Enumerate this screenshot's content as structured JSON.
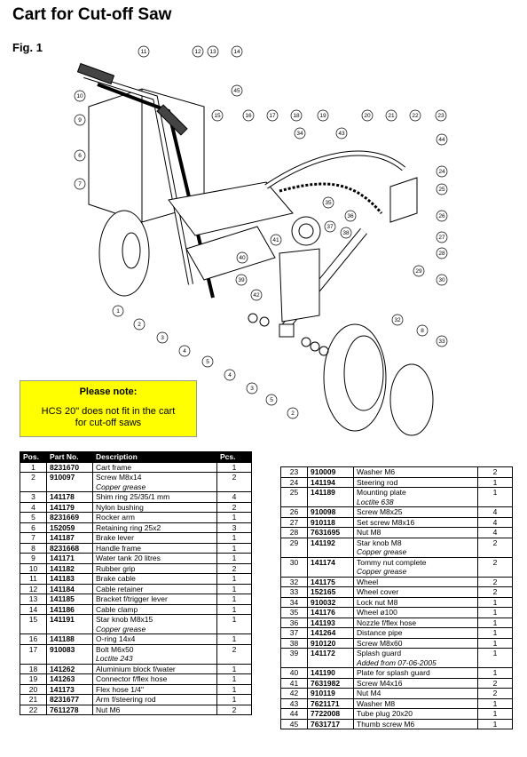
{
  "header": {
    "title": "Cart for Cut-off Saw",
    "figure": "Fig. 1"
  },
  "figure": {
    "callouts": [
      "11",
      "12",
      "13",
      "14",
      "10",
      "45",
      "9",
      "6",
      "7",
      "15",
      "16",
      "17",
      "18",
      "19",
      "20",
      "21",
      "22",
      "23",
      "34",
      "43",
      "44",
      "24",
      "25",
      "35",
      "26",
      "36",
      "37",
      "38",
      "27",
      "41",
      "40",
      "28",
      "29",
      "30",
      "39",
      "42",
      "1",
      "2",
      "3",
      "4",
      "5",
      "4",
      "3",
      "5",
      "2",
      "32",
      "8",
      "33"
    ]
  },
  "note": {
    "title": "Please note:",
    "body": "HCS 20\" does not fit in the cart for cut-off saws"
  },
  "table": {
    "headers": [
      "Pos.",
      "Part No.",
      "Description",
      "Pcs."
    ],
    "left_rows": [
      {
        "pos": "1",
        "part_no": "8231670",
        "description": "Cart frame",
        "pcs": "1"
      },
      {
        "pos": "2",
        "part_no": "910097",
        "description": "Screw M8x14",
        "note": "Copper grease",
        "pcs": "2"
      },
      {
        "pos": "3",
        "part_no": "141178",
        "description": "Shim ring 25/35/1 mm",
        "pcs": "4"
      },
      {
        "pos": "4",
        "part_no": "141179",
        "description": "Nylon bushing",
        "pcs": "2"
      },
      {
        "pos": "5",
        "part_no": "8231669",
        "description": "Rocker arm",
        "pcs": "1"
      },
      {
        "pos": "6",
        "part_no": "152059",
        "description": "Retaining ring 25x2",
        "pcs": "3"
      },
      {
        "pos": "7",
        "part_no": "141187",
        "description": "Brake lever",
        "pcs": "1"
      },
      {
        "pos": "8",
        "part_no": "8231668",
        "description": "Handle frame",
        "pcs": "1"
      },
      {
        "pos": "9",
        "part_no": "141171",
        "description": "Water tank 20 litres",
        "pcs": "1"
      },
      {
        "pos": "10",
        "part_no": "141182",
        "description": "Rubber grip",
        "pcs": "2"
      },
      {
        "pos": "11",
        "part_no": "141183",
        "description": "Brake cable",
        "pcs": "1"
      },
      {
        "pos": "12",
        "part_no": "141184",
        "description": "Cable retainer",
        "pcs": "1"
      },
      {
        "pos": "13",
        "part_no": "141185",
        "description": "Bracket f/trigger lever",
        "pcs": "1"
      },
      {
        "pos": "14",
        "part_no": "141186",
        "description": "Cable clamp",
        "pcs": "1"
      },
      {
        "pos": "15",
        "part_no": "141191",
        "description": "Star knob M8x15",
        "note": "Copper grease",
        "pcs": "1"
      },
      {
        "pos": "16",
        "part_no": "141188",
        "description": "O-ring 14x4",
        "pcs": "1"
      },
      {
        "pos": "17",
        "part_no": "910083",
        "description": "Bolt M6x50",
        "note": "Loctite 243",
        "pcs": "2"
      },
      {
        "pos": "18",
        "part_no": "141262",
        "description": "Aluminium block f/water",
        "pcs": "1"
      },
      {
        "pos": "19",
        "part_no": "141263",
        "description": "Connector f/flex hose",
        "pcs": "1"
      },
      {
        "pos": "20",
        "part_no": "141173",
        "description": "Flex hose 1/4\"",
        "pcs": "1"
      },
      {
        "pos": "21",
        "part_no": "8231677",
        "description": "Arm f/steering rod",
        "pcs": "1"
      },
      {
        "pos": "22",
        "part_no": "7611278",
        "description": "Nut M6",
        "pcs": "2"
      }
    ],
    "right_rows": [
      {
        "pos": "23",
        "part_no": "910009",
        "description": "Washer M6",
        "pcs": "2"
      },
      {
        "pos": "24",
        "part_no": "141194",
        "description": "Steering rod",
        "pcs": "1"
      },
      {
        "pos": "25",
        "part_no": "141189",
        "description": "Mounting plate",
        "note": "Loctite 638",
        "pcs": "1"
      },
      {
        "pos": "26",
        "part_no": "910098",
        "description": "Screw M8x25",
        "pcs": "4"
      },
      {
        "pos": "27",
        "part_no": "910118",
        "description": "Set screw M8x16",
        "pcs": "4"
      },
      {
        "pos": "28",
        "part_no": "7631695",
        "description": "Nut M8",
        "pcs": "4"
      },
      {
        "pos": "29",
        "part_no": "141192",
        "description": "Star knob M8",
        "note": "Copper grease",
        "pcs": "2"
      },
      {
        "pos": "30",
        "part_no": "141174",
        "description": "Tommy nut complete",
        "note": "Copper grease",
        "pcs": "2"
      },
      {
        "pos": "32",
        "part_no": "141175",
        "description": "Wheel",
        "pcs": "2"
      },
      {
        "pos": "33",
        "part_no": "152165",
        "description": "Wheel cover",
        "pcs": "2"
      },
      {
        "pos": "34",
        "part_no": "910032",
        "description": "Lock nut M8",
        "pcs": "1"
      },
      {
        "pos": "35",
        "part_no": "141176",
        "description": "Wheel ø100",
        "pcs": "1"
      },
      {
        "pos": "36",
        "part_no": "141193",
        "description": "Nozzle f/flex hose",
        "pcs": "1"
      },
      {
        "pos": "37",
        "part_no": "141264",
        "description": "Distance pipe",
        "pcs": "1"
      },
      {
        "pos": "38",
        "part_no": "910120",
        "description": "Screw M8x60",
        "pcs": "1"
      },
      {
        "pos": "39",
        "part_no": "141172",
        "description": "Splash guard",
        "note": "Added from 07-06-2005",
        "pcs": "1"
      },
      {
        "pos": "40",
        "part_no": "141190",
        "description": "Plate for splash guard",
        "pcs": "1"
      },
      {
        "pos": "41",
        "part_no": "7631982",
        "description": "Screw M4x16",
        "pcs": "2"
      },
      {
        "pos": "42",
        "part_no": "910119",
        "description": "Nut M4",
        "pcs": "2"
      },
      {
        "pos": "43",
        "part_no": "7621171",
        "description": "Washer M8",
        "pcs": "1"
      },
      {
        "pos": "44",
        "part_no": "7722008",
        "description": "Tube plug 20x20",
        "pcs": "1"
      },
      {
        "pos": "45",
        "part_no": "7631717",
        "description": "Thumb screw M6",
        "pcs": "1"
      }
    ]
  }
}
